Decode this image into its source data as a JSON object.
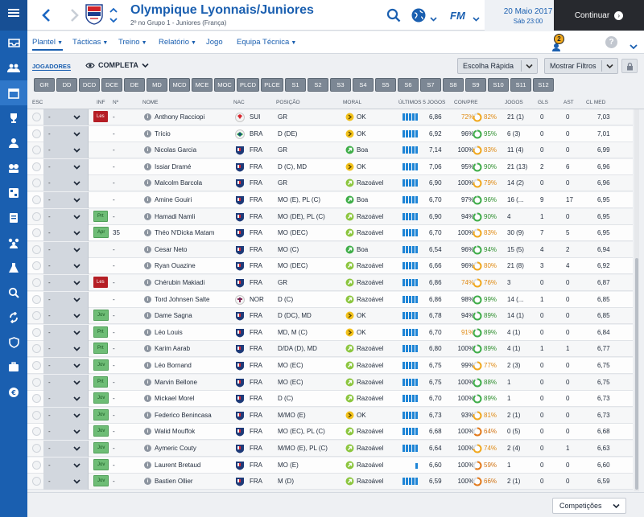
{
  "header": {
    "title": "Olympique Lyonnais/Juniores",
    "subtitle": "2º no Grupo 1 - Juniores (França)",
    "date": "20 Maio 2017",
    "time": "Sáb 23:00",
    "continue_label": "Continuar",
    "fm_label": "FM"
  },
  "nav": {
    "items": [
      "Plantel",
      "Tácticas",
      "Treino",
      "Relatório",
      "Jogo",
      "Equipa Técnica"
    ],
    "notification_count": "2",
    "help_label": "?"
  },
  "controls": {
    "section_label": "JOGADORES",
    "view_label": "COMPLETA",
    "quick_pick_label": "Escolha Rápida",
    "filters_label": "Mostrar Filtros"
  },
  "position_filters": [
    "GR",
    "DD",
    "DCD",
    "DCE",
    "DE",
    "MD",
    "MCD",
    "MCE",
    "MOC",
    "PLCD",
    "PLCE",
    "S1",
    "S2",
    "S3",
    "S4",
    "S5",
    "S6",
    "S7",
    "S8",
    "S9",
    "S10",
    "S11",
    "S12"
  ],
  "columns": {
    "esc": "ESC",
    "inf": "INF",
    "num": "Nº",
    "name": "NOME",
    "nat": "NAC",
    "pos": "POSIÇÃO",
    "moral": "MORAL",
    "form": "ÚLTIMOS 5 JOGOS",
    "cond": "CON/PRE",
    "apps": "JOGOS",
    "gls": "GLS",
    "ast": "AST",
    "avg": "CL MED"
  },
  "players": [
    {
      "role": "-",
      "inf": "Les",
      "num": "-",
      "name": "Anthony Racciopi",
      "nat": "SUI",
      "pos": "GR",
      "moral_level": "ok",
      "moral": "OK",
      "form": [
        3,
        3,
        3,
        3,
        3
      ],
      "rating": "6,86",
      "cond": "72%",
      "cond_color": "yellow",
      "pre_value": 82,
      "pre": "82%",
      "pre_color": "yellow",
      "apps": "21 (1)",
      "gls": "0",
      "ast": "0",
      "avg": "7,03"
    },
    {
      "role": "-",
      "inf": "",
      "num": "-",
      "name": "Trício",
      "nat": "BRA",
      "pos": "D (DE)",
      "moral_level": "ok",
      "moral": "OK",
      "form": [
        3,
        3,
        3,
        3,
        3
      ],
      "rating": "6,92",
      "cond": "96%",
      "cond_color": "",
      "pre_value": 95,
      "pre": "95%",
      "pre_color": "green",
      "apps": "6 (3)",
      "gls": "0",
      "ast": "0",
      "avg": "7,01"
    },
    {
      "role": "-",
      "inf": "",
      "num": "-",
      "name": "Nicolas Garcia",
      "nat": "FRA",
      "pos": "GR",
      "moral_level": "boa",
      "moral": "Boa",
      "form": [
        3,
        3,
        3,
        3,
        3
      ],
      "rating": "7,14",
      "cond": "100%",
      "cond_color": "",
      "pre_value": 83,
      "pre": "83%",
      "pre_color": "yellow",
      "apps": "11 (4)",
      "gls": "0",
      "ast": "0",
      "avg": "6,99"
    },
    {
      "role": "-",
      "inf": "",
      "num": "-",
      "name": "Issiar Dramé",
      "nat": "FRA",
      "pos": "D (C), MD",
      "moral_level": "ok",
      "moral": "OK",
      "form": [
        3,
        3,
        3,
        3,
        3
      ],
      "rating": "7,06",
      "cond": "95%",
      "cond_color": "",
      "pre_value": 90,
      "pre": "90%",
      "pre_color": "green",
      "apps": "21 (13)",
      "gls": "2",
      "ast": "6",
      "avg": "6,96"
    },
    {
      "role": "-",
      "inf": "",
      "num": "-",
      "name": "Malcolm Barcola",
      "nat": "FRA",
      "pos": "GR",
      "moral_level": "razoavel",
      "moral": "Razoável",
      "form": [
        3,
        3,
        3,
        3,
        3
      ],
      "rating": "6,90",
      "cond": "100%",
      "cond_color": "",
      "pre_value": 79,
      "pre": "79%",
      "pre_color": "yellow",
      "apps": "14 (2)",
      "gls": "0",
      "ast": "0",
      "avg": "6,96"
    },
    {
      "role": "-",
      "inf": "",
      "num": "-",
      "name": "Amine Gouiri",
      "nat": "FRA",
      "pos": "MO (E), PL (C)",
      "moral_level": "boa",
      "moral": "Boa",
      "form": [
        3,
        3,
        3,
        3,
        3
      ],
      "rating": "6,70",
      "cond": "97%",
      "cond_color": "",
      "pre_value": 96,
      "pre": "96%",
      "pre_color": "green",
      "apps": "16 (...",
      "gls": "9",
      "ast": "17",
      "avg": "6,95"
    },
    {
      "role": "-",
      "inf": "Prt",
      "num": "-",
      "name": "Hamadi Namli",
      "nat": "FRA",
      "pos": "MO (DE), PL (C)",
      "moral_level": "razoavel",
      "moral": "Razoável",
      "form": [
        3,
        3,
        3,
        3,
        3
      ],
      "rating": "6,90",
      "cond": "94%",
      "cond_color": "",
      "pre_value": 90,
      "pre": "90%",
      "pre_color": "green",
      "apps": "4",
      "gls": "1",
      "ast": "0",
      "avg": "6,95"
    },
    {
      "role": "-",
      "inf": "Apr",
      "num": "35",
      "name": "Théo N'Dicka Matam",
      "nat": "FRA",
      "pos": "MO (DEC)",
      "moral_level": "razoavel",
      "moral": "Razoável",
      "form": [
        3,
        3,
        3,
        3,
        3
      ],
      "rating": "6,70",
      "cond": "100%",
      "cond_color": "",
      "pre_value": 83,
      "pre": "83%",
      "pre_color": "yellow",
      "apps": "30 (9)",
      "gls": "7",
      "ast": "5",
      "avg": "6,95"
    },
    {
      "role": "-",
      "inf": "",
      "num": "-",
      "name": "Cesar Neto",
      "nat": "FRA",
      "pos": "MO (C)",
      "moral_level": "boa",
      "moral": "Boa",
      "form": [
        3,
        3,
        3,
        3,
        3
      ],
      "rating": "6,54",
      "cond": "96%",
      "cond_color": "",
      "pre_value": 94,
      "pre": "94%",
      "pre_color": "green",
      "apps": "15 (5)",
      "gls": "4",
      "ast": "2",
      "avg": "6,94"
    },
    {
      "role": "-",
      "inf": "",
      "num": "-",
      "name": "Ryan Ouazine",
      "nat": "FRA",
      "pos": "MO (DEC)",
      "moral_level": "razoavel",
      "moral": "Razoável",
      "form": [
        3,
        3,
        3,
        3,
        3
      ],
      "rating": "6,66",
      "cond": "96%",
      "cond_color": "",
      "pre_value": 80,
      "pre": "80%",
      "pre_color": "yellow",
      "apps": "21 (8)",
      "gls": "3",
      "ast": "4",
      "avg": "6,92"
    },
    {
      "role": "-",
      "inf": "Les",
      "num": "-",
      "name": "Chérubin Makiadi",
      "nat": "FRA",
      "pos": "GR",
      "moral_level": "razoavel",
      "moral": "Razoável",
      "form": [
        3,
        3,
        3,
        3,
        3
      ],
      "rating": "6,86",
      "cond": "74%",
      "cond_color": "yellow",
      "pre_value": 76,
      "pre": "76%",
      "pre_color": "yellow",
      "apps": "3",
      "gls": "0",
      "ast": "0",
      "avg": "6,87"
    },
    {
      "role": "-",
      "inf": "",
      "num": "-",
      "name": "Tord Johnsen Salte",
      "nat": "NOR",
      "pos": "D (C)",
      "moral_level": "razoavel",
      "moral": "Razoável",
      "form": [
        3,
        3,
        3,
        3,
        3
      ],
      "rating": "6,86",
      "cond": "98%",
      "cond_color": "",
      "pre_value": 99,
      "pre": "99%",
      "pre_color": "green",
      "apps": "14 (...",
      "gls": "1",
      "ast": "0",
      "avg": "6,85"
    },
    {
      "role": "-",
      "inf": "Jov",
      "num": "-",
      "name": "Dame Sagna",
      "nat": "FRA",
      "pos": "D (DC), MD",
      "moral_level": "ok",
      "moral": "OK",
      "form": [
        3,
        3,
        3,
        3,
        3
      ],
      "rating": "6,78",
      "cond": "94%",
      "cond_color": "",
      "pre_value": 89,
      "pre": "89%",
      "pre_color": "green",
      "apps": "14 (1)",
      "gls": "0",
      "ast": "0",
      "avg": "6,85"
    },
    {
      "role": "-",
      "inf": "Prt",
      "num": "-",
      "name": "Léo Louis",
      "nat": "FRA",
      "pos": "MD, M (C)",
      "moral_level": "ok",
      "moral": "OK",
      "form": [
        3,
        3,
        3,
        3,
        3
      ],
      "rating": "6,70",
      "cond": "91%",
      "cond_color": "yellow",
      "pre_value": 89,
      "pre": "89%",
      "pre_color": "green",
      "apps": "4 (1)",
      "gls": "0",
      "ast": "0",
      "avg": "6,84"
    },
    {
      "role": "-",
      "inf": "Prt",
      "num": "-",
      "name": "Karim Aarab",
      "nat": "FRA",
      "pos": "D/DA (D), MD",
      "moral_level": "razoavel",
      "moral": "Razoável",
      "form": [
        3,
        3,
        3,
        3,
        3
      ],
      "rating": "6,80",
      "cond": "100%",
      "cond_color": "",
      "pre_value": 89,
      "pre": "89%",
      "pre_color": "green",
      "apps": "4 (1)",
      "gls": "1",
      "ast": "1",
      "avg": "6,77"
    },
    {
      "role": "-",
      "inf": "Jov",
      "num": "-",
      "name": "Léo Bornand",
      "nat": "FRA",
      "pos": "MO (EC)",
      "moral_level": "razoavel",
      "moral": "Razoável",
      "form": [
        3,
        3,
        3,
        3,
        3
      ],
      "rating": "6,75",
      "cond": "99%",
      "cond_color": "",
      "pre_value": 77,
      "pre": "77%",
      "pre_color": "yellow",
      "apps": "2 (3)",
      "gls": "0",
      "ast": "0",
      "avg": "6,75"
    },
    {
      "role": "-",
      "inf": "Prt",
      "num": "-",
      "name": "Marvin Bellone",
      "nat": "FRA",
      "pos": "MO (EC)",
      "moral_level": "razoavel",
      "moral": "Razoável",
      "form": [
        3,
        3,
        3,
        3,
        3
      ],
      "rating": "6,75",
      "cond": "100%",
      "cond_color": "",
      "pre_value": 88,
      "pre": "88%",
      "pre_color": "green",
      "apps": "1",
      "gls": "0",
      "ast": "0",
      "avg": "6,75"
    },
    {
      "role": "-",
      "inf": "Jov",
      "num": "-",
      "name": "Mickael Morel",
      "nat": "FRA",
      "pos": "D (C)",
      "moral_level": "razoavel",
      "moral": "Razoável",
      "form": [
        3,
        3,
        3,
        3,
        3
      ],
      "rating": "6,70",
      "cond": "100%",
      "cond_color": "",
      "pre_value": 89,
      "pre": "89%",
      "pre_color": "green",
      "apps": "1",
      "gls": "0",
      "ast": "0",
      "avg": "6,73"
    },
    {
      "role": "-",
      "inf": "Jov",
      "num": "-",
      "name": "Federico Benincasa",
      "nat": "FRA",
      "pos": "M/MO (E)",
      "moral_level": "ok",
      "moral": "OK",
      "form": [
        3,
        3,
        3,
        3,
        3
      ],
      "rating": "6,73",
      "cond": "93%",
      "cond_color": "",
      "pre_value": 81,
      "pre": "81%",
      "pre_color": "yellow",
      "apps": "2 (1)",
      "gls": "0",
      "ast": "0",
      "avg": "6,73"
    },
    {
      "role": "-",
      "inf": "Jov",
      "num": "-",
      "name": "Walid Mouffok",
      "nat": "FRA",
      "pos": "MO (EC), PL (C)",
      "moral_level": "razoavel",
      "moral": "Razoável",
      "form": [
        3,
        3,
        3,
        3,
        3
      ],
      "rating": "6,68",
      "cond": "100%",
      "cond_color": "",
      "pre_value": 64,
      "pre": "64%",
      "pre_color": "orange",
      "apps": "0 (5)",
      "gls": "0",
      "ast": "0",
      "avg": "6,68"
    },
    {
      "role": "-",
      "inf": "Jov",
      "num": "-",
      "name": "Aymeric Couty",
      "nat": "FRA",
      "pos": "M/MO (E), PL (C)",
      "moral_level": "razoavel",
      "moral": "Razoável",
      "form": [
        3,
        3,
        3,
        3,
        3
      ],
      "rating": "6,64",
      "cond": "100%",
      "cond_color": "",
      "pre_value": 74,
      "pre": "74%",
      "pre_color": "yellow",
      "apps": "2 (4)",
      "gls": "0",
      "ast": "1",
      "avg": "6,63"
    },
    {
      "role": "-",
      "inf": "Jov",
      "num": "-",
      "name": "Laurent Bretaud",
      "nat": "FRA",
      "pos": "MO (E)",
      "moral_level": "razoavel",
      "moral": "Razoável",
      "form": [
        0,
        0,
        0,
        0,
        2
      ],
      "rating": "6,60",
      "cond": "100%",
      "cond_color": "",
      "pre_value": 59,
      "pre": "59%",
      "pre_color": "orange",
      "apps": "1",
      "gls": "0",
      "ast": "0",
      "avg": "6,60"
    },
    {
      "role": "-",
      "inf": "Jov",
      "num": "-",
      "name": "Bastien Ollier",
      "nat": "FRA",
      "pos": "M (D)",
      "moral_level": "razoavel",
      "moral": "Razoável",
      "form": [
        3,
        3,
        3,
        3,
        3
      ],
      "rating": "6,59",
      "cond": "100%",
      "cond_color": "",
      "pre_value": 66,
      "pre": "66%",
      "pre_color": "orange",
      "apps": "2 (1)",
      "gls": "0",
      "ast": "0",
      "avg": "6,59"
    }
  ],
  "footer": {
    "competitions_label": "Competições"
  },
  "colors": {
    "brand_blue": "#1a5fb0",
    "injury_red": "#b51e25",
    "condition_yellow": "#e08a12",
    "condition_green": "#2f8f2f",
    "condition_orange": "#d27312",
    "moral_ok": "#f2c11b",
    "moral_good": "#3fae49",
    "moral_fair": "#8cc63f"
  },
  "icons": {
    "sidebar": [
      "inbox-icon",
      "squad-icon",
      "calendar-icon",
      "trophy-icon",
      "staff-icon",
      "scouting-icon",
      "tactics-icon",
      "notes-icon",
      "team-icon",
      "training-icon",
      "search-icon",
      "transfers-icon",
      "shield-icon",
      "finances-icon",
      "euro-icon"
    ]
  }
}
